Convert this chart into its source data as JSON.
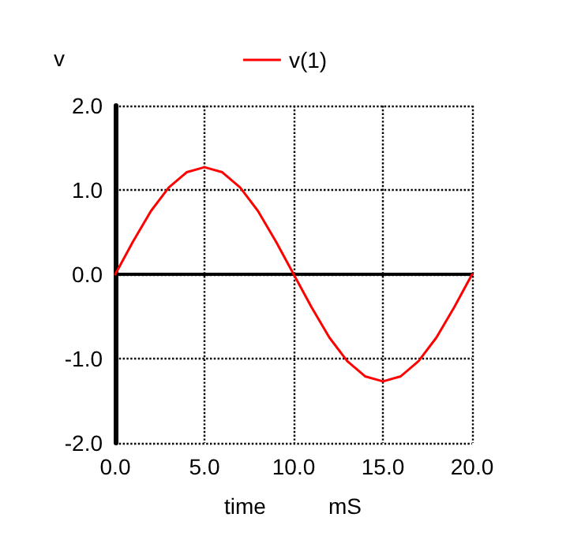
{
  "chart_data": {
    "type": "line",
    "xlabel": "time",
    "ylabel": "v",
    "annotations": [
      "mS"
    ],
    "x": [
      0,
      1,
      2,
      3,
      4,
      5,
      6,
      7,
      8,
      9,
      10,
      11,
      12,
      13,
      14,
      15,
      16,
      17,
      18,
      19,
      20
    ],
    "series": [
      {
        "name": "v(1)",
        "color": "#ff0000",
        "values": [
          0,
          0.39,
          0.75,
          1.03,
          1.21,
          1.27,
          1.21,
          1.03,
          0.75,
          0.39,
          0,
          -0.39,
          -0.75,
          -1.03,
          -1.21,
          -1.27,
          -1.21,
          -1.03,
          -0.75,
          -0.39,
          0
        ]
      }
    ],
    "xlim": [
      0,
      20
    ],
    "xticks": [
      {
        "value": 0,
        "label": "0.0"
      },
      {
        "value": 5,
        "label": "5.0"
      },
      {
        "value": 10,
        "label": "10.0"
      },
      {
        "value": 15,
        "label": "15.0"
      },
      {
        "value": 20,
        "label": "20.0"
      }
    ],
    "ylim": [
      -2,
      2
    ],
    "yticks": [
      {
        "value": -2,
        "label": "-2.0"
      },
      {
        "value": -1,
        "label": "-1.0"
      },
      {
        "value": 0,
        "label": "0.0"
      },
      {
        "value": 1,
        "label": "1.0"
      },
      {
        "value": 2,
        "label": "2.0"
      }
    ],
    "grid": true,
    "legend": "top",
    "marker": "none",
    "line_style": "solid"
  }
}
